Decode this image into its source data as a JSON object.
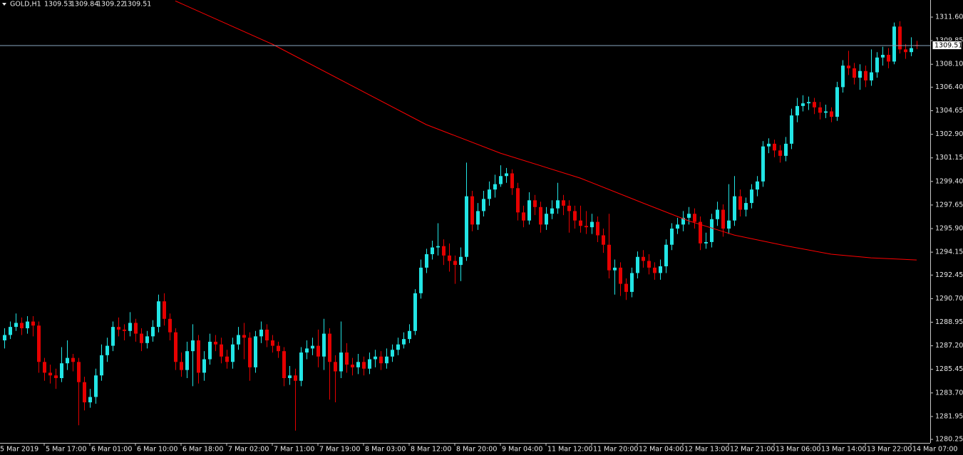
{
  "header": {
    "symbol": "GOLD,H1"
  },
  "chart_data": {
    "type": "candlestick",
    "bull_color": "#22e5e5",
    "bear_color": "#e60000",
    "axis_color": "#c8c8c8",
    "price_line_color": "#8aa8c0",
    "open": [
      1287.6,
      1288.0,
      1288.6,
      1288.9,
      1288.5,
      1289.0,
      1288.7,
      1286.0,
      1285.2,
      1285.0,
      1284.8,
      1285.9,
      1286.3,
      1286.0,
      1284.5,
      1283.0,
      1283.4,
      1285.0,
      1286.5,
      1287.2,
      1288.6,
      1288.4,
      1288.3,
      1288.9,
      1288.1,
      1287.4,
      1287.9,
      1288.6,
      1290.5,
      1289.2,
      1288.2,
      1286.0,
      1285.4,
      1286.8,
      1287.6,
      1285.2,
      1286.2,
      1287.5,
      1287.3,
      1286.4,
      1286.0,
      1287.3,
      1288.0,
      1287.8,
      1285.6,
      1287.9,
      1288.4,
      1287.6,
      1287.2,
      1286.8,
      1284.8,
      1285.0,
      1284.6,
      1286.7,
      1287.0,
      1287.2,
      1286.4,
      1288.1,
      1286.0,
      1285.3,
      1286.7,
      1285.8,
      1285.6,
      1286.0,
      1285.5,
      1286.2,
      1286.4,
      1285.9,
      1286.4,
      1286.9,
      1287.3,
      1287.7,
      1288.3,
      1291.1,
      1293.0,
      1294.0,
      1294.5,
      1294.6,
      1293.9,
      1293.5,
      1293.2,
      1293.8,
      1298.3,
      1296.2,
      1297.2,
      1298.1,
      1298.8,
      1299.2,
      1299.8,
      1300.0,
      1298.9,
      1297.1,
      1296.5,
      1298.0,
      1297.5,
      1296.2,
      1297.0,
      1297.4,
      1298.0,
      1297.6,
      1297.2,
      1296.5,
      1296.1,
      1296.0,
      1296.4,
      1295.4,
      1294.7,
      1292.8,
      1293.0,
      1291.8,
      1291.2,
      1292.6,
      1293.8,
      1293.5,
      1293.0,
      1292.6,
      1293.1,
      1294.7,
      1295.9,
      1296.2,
      1296.7,
      1297.0,
      1296.4,
      1294.8,
      1294.9,
      1296.6,
      1297.3,
      1295.9,
      1296.5,
      1298.3,
      1297.3,
      1297.8,
      1298.8,
      1299.4,
      1302.0,
      1302.2,
      1301.7,
      1301.3,
      1302.2,
      1304.3,
      1305.0,
      1305.2,
      1305.3,
      1304.9,
      1304.5,
      1304.6,
      1304.2,
      1306.4,
      1308.0,
      1307.8,
      1307.1,
      1307.6,
      1306.9,
      1307.5,
      1308.6,
      1308.8,
      1308.3,
      1310.9,
      1309.2,
      1309.0,
      1309.53
    ],
    "high": [
      1288.5,
      1289.0,
      1289.6,
      1289.3,
      1289.4,
      1289.4,
      1289.0,
      1286.3,
      1285.8,
      1285.5,
      1287.1,
      1287.6,
      1286.6,
      1286.3,
      1284.9,
      1284.0,
      1285.5,
      1287.3,
      1287.8,
      1289.0,
      1289.3,
      1288.8,
      1289.7,
      1289.2,
      1288.5,
      1288.3,
      1289.1,
      1291.0,
      1291.1,
      1289.6,
      1288.5,
      1286.7,
      1287.5,
      1288.8,
      1288.0,
      1286.8,
      1288.1,
      1288.0,
      1287.8,
      1286.9,
      1287.8,
      1288.6,
      1288.9,
      1288.2,
      1288.3,
      1289.0,
      1288.8,
      1288.0,
      1287.5,
      1287.1,
      1285.7,
      1285.5,
      1287.1,
      1287.6,
      1287.8,
      1288.4,
      1289.2,
      1288.5,
      1286.5,
      1289.0,
      1287.4,
      1286.3,
      1286.6,
      1286.4,
      1286.7,
      1286.9,
      1286.8,
      1287.0,
      1287.3,
      1287.8,
      1288.2,
      1288.8,
      1291.4,
      1293.6,
      1294.4,
      1295.0,
      1296.3,
      1295.1,
      1294.8,
      1293.9,
      1294.5,
      1300.8,
      1298.7,
      1297.8,
      1298.7,
      1299.4,
      1299.9,
      1300.6,
      1300.4,
      1300.3,
      1299.3,
      1297.6,
      1298.6,
      1298.4,
      1297.9,
      1297.5,
      1298.0,
      1299.3,
      1298.4,
      1298.0,
      1297.6,
      1297.6,
      1297.2,
      1297.0,
      1296.8,
      1295.9,
      1297.0,
      1293.6,
      1293.4,
      1292.2,
      1293.0,
      1294.2,
      1294.3,
      1294.0,
      1293.4,
      1293.6,
      1295.1,
      1296.3,
      1296.7,
      1297.2,
      1297.5,
      1297.4,
      1296.8,
      1295.6,
      1297.0,
      1297.9,
      1297.7,
      1299.2,
      1299.8,
      1298.8,
      1298.2,
      1299.2,
      1299.8,
      1302.4,
      1302.6,
      1302.5,
      1302.1,
      1302.7,
      1304.8,
      1305.6,
      1305.8,
      1305.7,
      1305.6,
      1305.3,
      1305.1,
      1304.9,
      1306.8,
      1308.4,
      1309.1,
      1308.2,
      1308.1,
      1308.0,
      1309.2,
      1309.0,
      1309.4,
      1309.3,
      1311.2,
      1311.3,
      1309.6,
      1310.1,
      1309.84
    ],
    "low": [
      1287.0,
      1287.7,
      1288.3,
      1288.0,
      1288.1,
      1287.9,
      1285.2,
      1284.6,
      1284.4,
      1284.0,
      1284.5,
      1285.4,
      1285.3,
      1281.3,
      1282.4,
      1282.6,
      1282.9,
      1284.6,
      1286.0,
      1286.8,
      1287.9,
      1287.6,
      1287.9,
      1287.5,
      1286.8,
      1287.0,
      1287.5,
      1288.2,
      1288.7,
      1287.6,
      1285.4,
      1284.9,
      1284.8,
      1284.2,
      1284.4,
      1284.6,
      1285.8,
      1286.8,
      1285.9,
      1285.5,
      1285.5,
      1286.9,
      1286.2,
      1284.6,
      1285.2,
      1287.4,
      1287.1,
      1286.7,
      1286.3,
      1284.2,
      1284.3,
      1280.9,
      1284.2,
      1286.2,
      1286.5,
      1285.6,
      1285.4,
      1283.2,
      1283.0,
      1284.8,
      1285.2,
      1285.0,
      1285.1,
      1285.0,
      1285.1,
      1285.6,
      1285.4,
      1285.5,
      1286.0,
      1286.5,
      1287.0,
      1287.4,
      1288.0,
      1290.7,
      1292.6,
      1293.6,
      1293.9,
      1293.2,
      1292.7,
      1291.8,
      1292.0,
      1293.5,
      1295.7,
      1295.8,
      1296.8,
      1297.6,
      1298.2,
      1299.0,
      1299.3,
      1298.4,
      1296.5,
      1296.0,
      1296.2,
      1296.9,
      1295.6,
      1295.8,
      1296.6,
      1297.0,
      1296.9,
      1295.6,
      1295.9,
      1295.6,
      1295.5,
      1295.5,
      1294.9,
      1294.1,
      1292.2,
      1291.0,
      1290.9,
      1290.6,
      1290.8,
      1292.2,
      1293.0,
      1292.5,
      1292.1,
      1292.1,
      1292.6,
      1294.3,
      1295.5,
      1295.7,
      1296.2,
      1295.9,
      1294.3,
      1294.4,
      1294.5,
      1296.1,
      1295.3,
      1295.5,
      1296.1,
      1296.8,
      1296.8,
      1297.4,
      1298.3,
      1299.0,
      1301.5,
      1301.2,
      1300.8,
      1300.9,
      1301.8,
      1303.8,
      1304.6,
      1304.7,
      1304.4,
      1304.0,
      1304.1,
      1303.8,
      1303.9,
      1306.0,
      1307.3,
      1306.6,
      1306.2,
      1306.4,
      1306.5,
      1307.1,
      1308.0,
      1307.8,
      1308.1,
      1308.9,
      1308.5,
      1308.7,
      1309.22
    ],
    "close": [
      1288.0,
      1288.6,
      1288.9,
      1288.5,
      1289.0,
      1288.7,
      1286.0,
      1285.2,
      1285.0,
      1284.8,
      1285.9,
      1286.3,
      1286.0,
      1284.5,
      1283.0,
      1283.4,
      1285.0,
      1286.5,
      1287.2,
      1288.6,
      1288.4,
      1288.3,
      1288.9,
      1288.1,
      1287.4,
      1287.9,
      1288.6,
      1290.5,
      1289.2,
      1288.2,
      1286.0,
      1285.4,
      1286.8,
      1287.6,
      1285.2,
      1286.2,
      1287.5,
      1287.3,
      1286.4,
      1286.0,
      1287.3,
      1288.0,
      1287.8,
      1285.6,
      1287.9,
      1288.4,
      1287.6,
      1287.2,
      1286.8,
      1284.8,
      1285.0,
      1284.6,
      1286.7,
      1287.0,
      1287.2,
      1286.4,
      1288.1,
      1286.0,
      1285.3,
      1286.7,
      1285.8,
      1285.6,
      1286.0,
      1285.5,
      1286.2,
      1286.4,
      1285.9,
      1286.4,
      1286.9,
      1287.3,
      1287.7,
      1288.3,
      1291.1,
      1293.0,
      1294.0,
      1294.5,
      1294.6,
      1293.9,
      1293.5,
      1293.2,
      1293.8,
      1298.3,
      1296.2,
      1297.2,
      1298.1,
      1298.8,
      1299.2,
      1299.8,
      1300.0,
      1298.9,
      1297.1,
      1296.5,
      1298.0,
      1297.5,
      1296.2,
      1297.0,
      1297.4,
      1298.0,
      1297.6,
      1297.2,
      1296.5,
      1296.1,
      1296.0,
      1296.4,
      1295.4,
      1294.7,
      1292.8,
      1293.0,
      1291.8,
      1291.2,
      1292.6,
      1293.8,
      1293.5,
      1293.0,
      1292.6,
      1293.1,
      1294.7,
      1295.9,
      1296.2,
      1296.7,
      1297.0,
      1296.4,
      1294.8,
      1294.9,
      1296.6,
      1297.3,
      1295.9,
      1296.5,
      1298.3,
      1297.3,
      1297.8,
      1298.8,
      1299.4,
      1302.0,
      1302.2,
      1301.7,
      1301.3,
      1302.2,
      1304.3,
      1305.0,
      1305.2,
      1305.3,
      1304.9,
      1304.5,
      1304.6,
      1304.2,
      1306.4,
      1308.0,
      1307.8,
      1307.1,
      1307.6,
      1306.9,
      1307.5,
      1308.6,
      1308.8,
      1308.3,
      1310.9,
      1309.2,
      1309.0,
      1309.3,
      1309.51
    ],
    "ma": {
      "color": "#ff0000",
      "x": [
        30,
        47,
        74,
        87,
        101,
        112,
        120,
        128,
        137,
        145,
        152,
        160
      ],
      "values": [
        1312.8,
        1309.59,
        1303.62,
        1301.5,
        1299.65,
        1297.8,
        1296.48,
        1295.42,
        1294.63,
        1294.0,
        1293.73,
        1293.57
      ]
    },
    "xlim": [
      -0.75,
      162.375
    ],
    "xticks": [
      {
        "value": -1,
        "label": "5 Mar 2019"
      },
      {
        "value": 7,
        "label": "5 Mar 17:00"
      },
      {
        "value": 15,
        "label": "6 Mar 01:00"
      },
      {
        "value": 23,
        "label": "6 Mar 10:00"
      },
      {
        "value": 31,
        "label": "6 Mar 18:00"
      },
      {
        "value": 39,
        "label": "7 Mar 02:00"
      },
      {
        "value": 47,
        "label": "7 Mar 11:00"
      },
      {
        "value": 55,
        "label": "7 Mar 19:00"
      },
      {
        "value": 63,
        "label": "8 Mar 03:00"
      },
      {
        "value": 71,
        "label": "8 Mar 12:00"
      },
      {
        "value": 79,
        "label": "8 Mar 20:00"
      },
      {
        "value": 87,
        "label": "9 Mar 04:00"
      },
      {
        "value": 95,
        "label": "11 Mar 12:00"
      },
      {
        "value": 103,
        "label": "11 Mar 20:00"
      },
      {
        "value": 111,
        "label": "12 Mar 04:00"
      },
      {
        "value": 119,
        "label": "12 Mar 13:00"
      },
      {
        "value": 127,
        "label": "12 Mar 21:00"
      },
      {
        "value": 135,
        "label": "13 Mar 06:00"
      },
      {
        "value": 143,
        "label": "13 Mar 14:00"
      },
      {
        "value": 151,
        "label": "13 Mar 22:00"
      },
      {
        "value": 159,
        "label": "14 Mar 07:00"
      }
    ],
    "ylim": [
      1279.99,
      1312.87
    ],
    "yticks": [
      {
        "value": 1311.6,
        "label": "1311.60"
      },
      {
        "value": 1309.85,
        "label": "1309.85"
      },
      {
        "value": 1308.1,
        "label": "1308.10"
      },
      {
        "value": 1306.4,
        "label": "1306.40"
      },
      {
        "value": 1304.65,
        "label": "1304.65"
      },
      {
        "value": 1302.9,
        "label": "1302.90"
      },
      {
        "value": 1301.15,
        "label": "1301.15"
      },
      {
        "value": 1299.4,
        "label": "1299.40"
      },
      {
        "value": 1297.65,
        "label": "1297.65"
      },
      {
        "value": 1295.9,
        "label": "1295.90"
      },
      {
        "value": 1294.15,
        "label": "1294.15"
      },
      {
        "value": 1292.45,
        "label": "1292.45"
      },
      {
        "value": 1290.7,
        "label": "1290.70"
      },
      {
        "value": 1288.95,
        "label": "1288.95"
      },
      {
        "value": 1287.2,
        "label": "1287.20"
      },
      {
        "value": 1285.45,
        "label": "1285.45"
      },
      {
        "value": 1283.7,
        "label": "1283.70"
      },
      {
        "value": 1281.95,
        "label": "1281.95"
      },
      {
        "value": 1280.25,
        "label": "1280.25"
      }
    ],
    "grid": false
  }
}
